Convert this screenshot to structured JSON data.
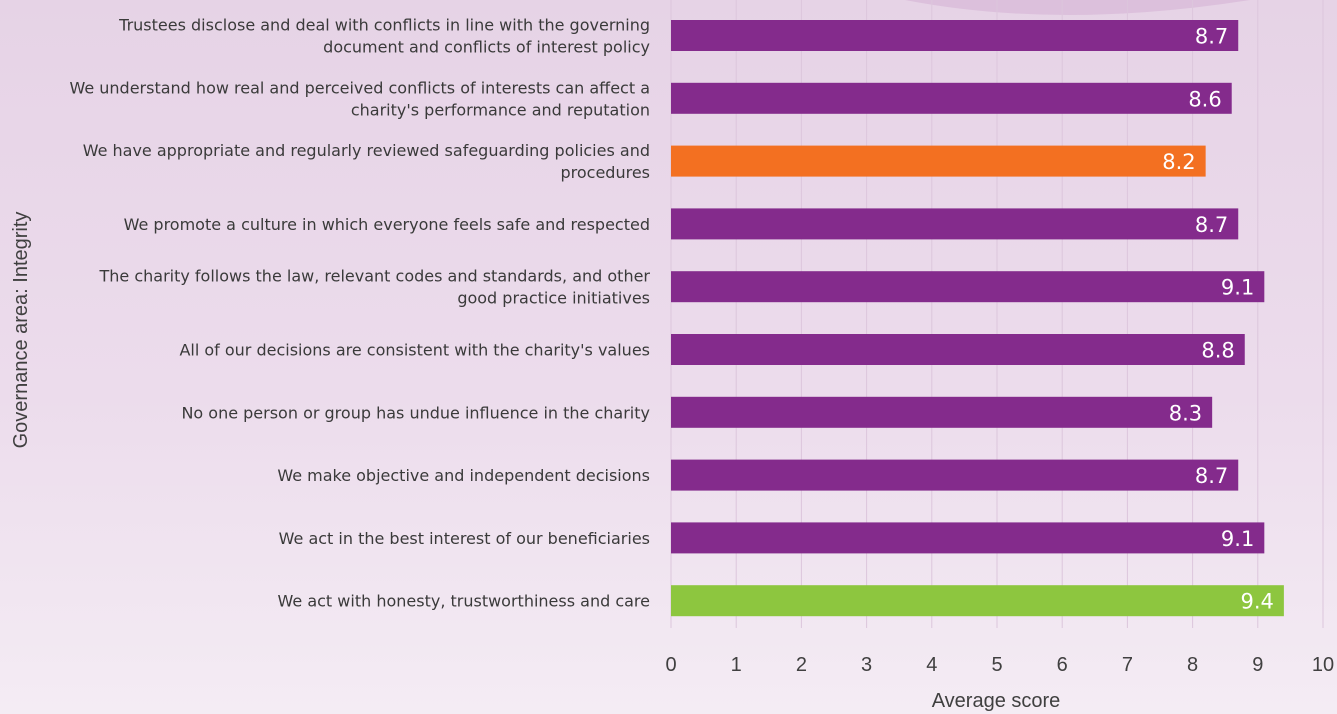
{
  "chart_data": {
    "type": "bar",
    "orientation": "horizontal",
    "categories": [
      "Trustees disclose and deal with conflicts in line with the  governing document and conflicts of interest policy",
      "We understand how real and perceived conflicts of interests can affect a charity's performance and reputation",
      "We have appropriate and regularly reviewed safeguarding policies and procedures",
      "We promote a culture in which everyone feels safe and respected",
      "The charity follows the law, relevant codes and standards, and other good practice initiatives",
      "All of our decisions are consistent with the charity's values",
      "No one person or group has undue influence in the charity",
      "We make objective and independent decisions",
      "We act in the best interest of our beneficiaries",
      "We act with honesty, trustworthiness and care"
    ],
    "category_lines": [
      [
        "Trustees disclose and deal with conflicts in line with the  governing",
        "document and conflicts of interest policy"
      ],
      [
        "We understand how real and perceived conflicts of interests can affect a",
        "charity's performance and reputation"
      ],
      [
        "We have appropriate and regularly reviewed safeguarding policies and",
        "procedures"
      ],
      [
        "We promote a culture in which everyone feels safe and respected"
      ],
      [
        "The charity follows the law, relevant codes and standards, and other",
        "good practice initiatives"
      ],
      [
        "All of our decisions are consistent with the charity's values"
      ],
      [
        "No one person or group has undue influence in the charity"
      ],
      [
        "We make objective and independent decisions"
      ],
      [
        "We act in the best interest of our beneficiaries"
      ],
      [
        "We act with honesty, trustworthiness and care"
      ]
    ],
    "values": [
      8.7,
      8.6,
      8.2,
      8.7,
      9.1,
      8.8,
      8.3,
      8.7,
      9.1,
      9.4
    ],
    "value_labels": [
      "8.7",
      "8.6",
      "8.2",
      "8.7",
      "9.1",
      "8.8",
      "8.3",
      "8.7",
      "9.1",
      "9.4"
    ],
    "bar_colors": [
      "#842b8c",
      "#842b8c",
      "#f37021",
      "#842b8c",
      "#842b8c",
      "#842b8c",
      "#842b8c",
      "#842b8c",
      "#842b8c",
      "#8dc63f"
    ],
    "xlabel": "Average score",
    "ylabel": "Governance area: Integrity",
    "xlim": [
      0,
      10
    ],
    "xticks": [
      "0",
      "1",
      "2",
      "3",
      "4",
      "5",
      "6",
      "7",
      "8",
      "9",
      "10"
    ],
    "grid": true
  }
}
